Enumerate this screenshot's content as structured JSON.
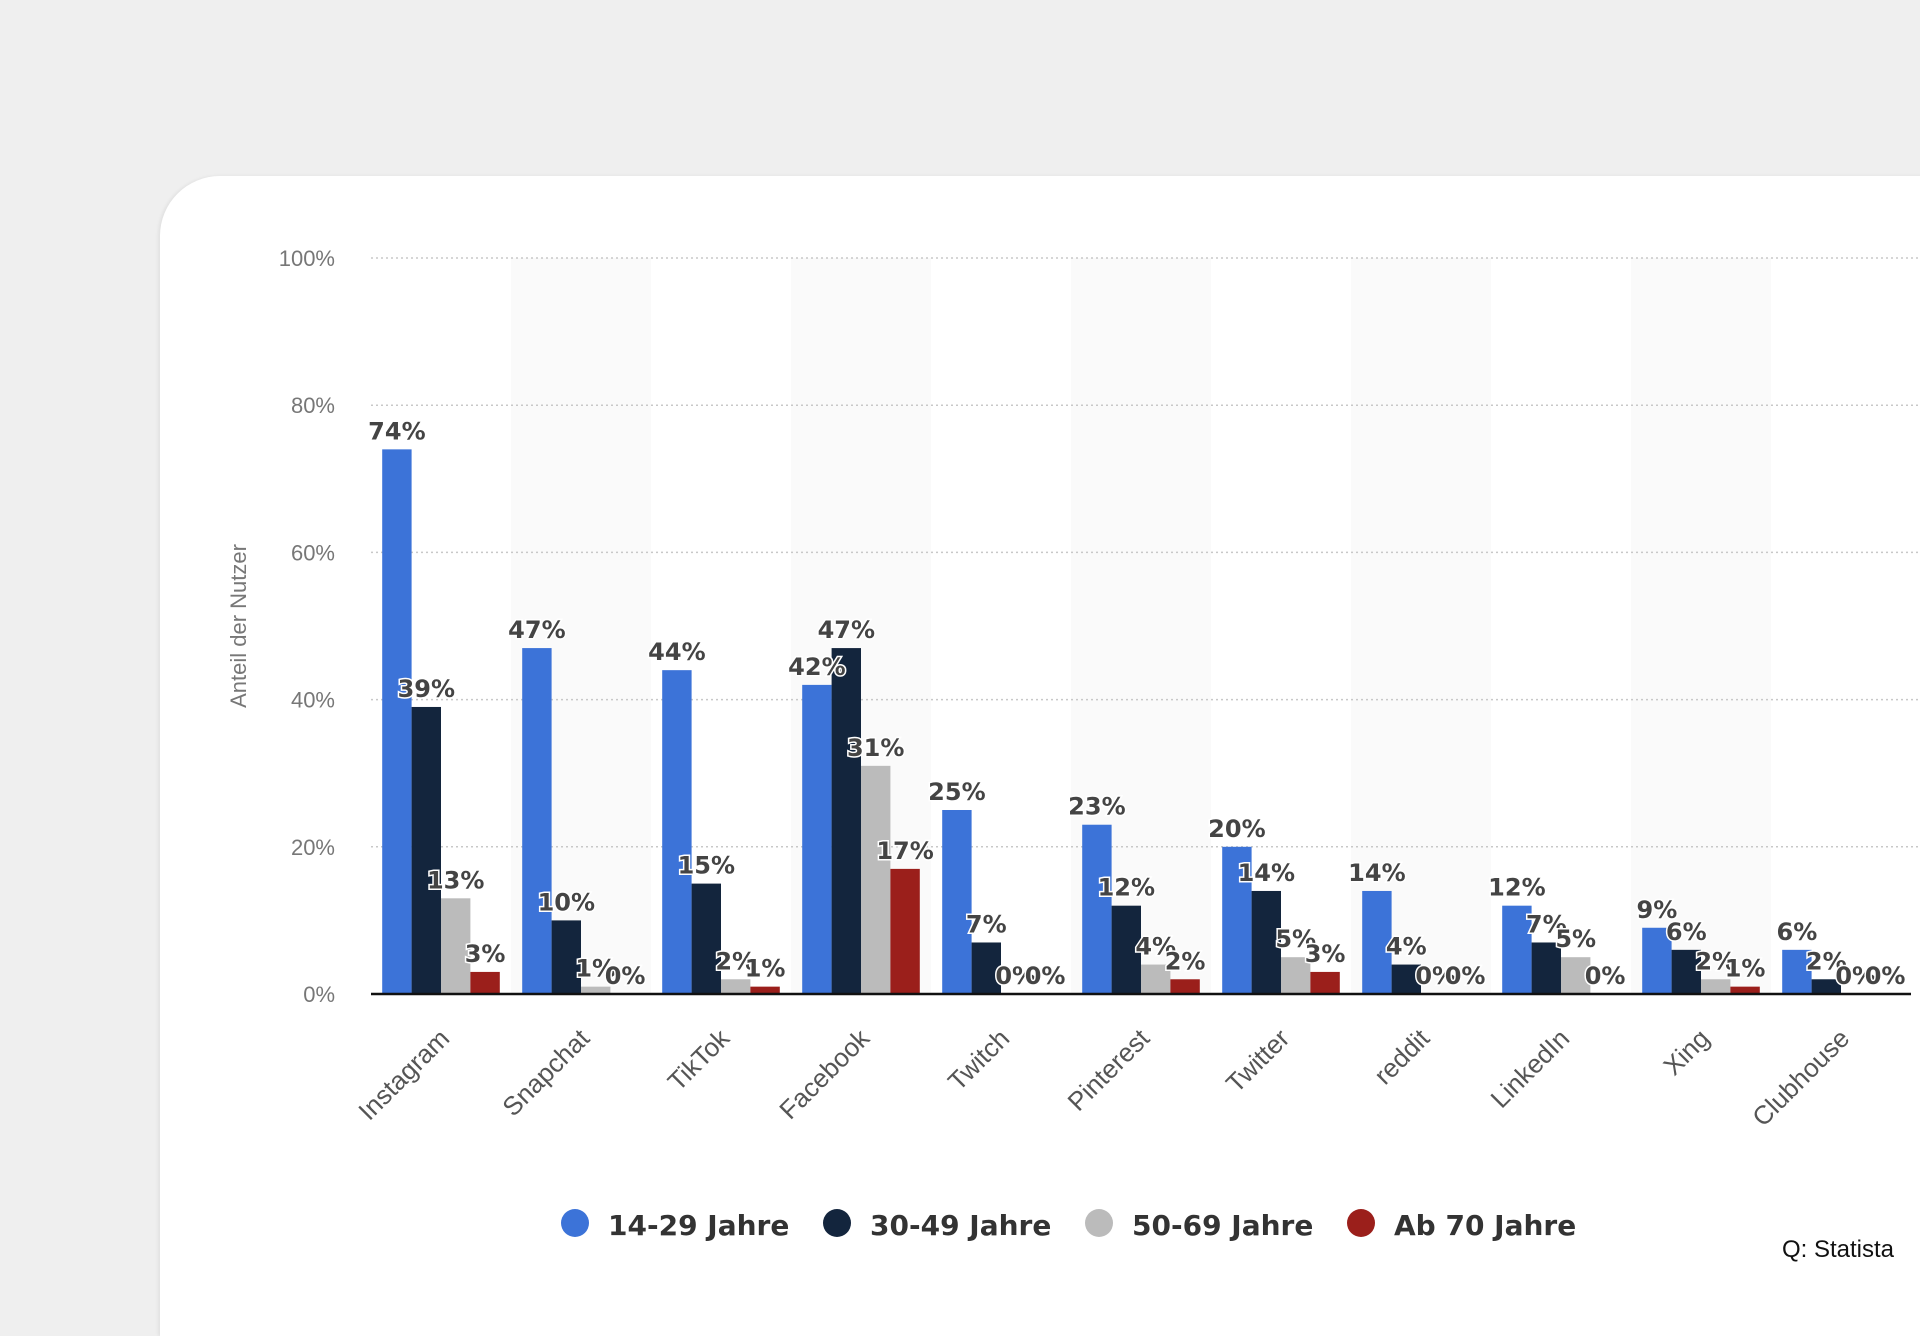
{
  "chart_data": {
    "type": "bar",
    "ylabel": "Anteil der Nutzer",
    "xlabel": "",
    "ylim": [
      0,
      100
    ],
    "yticks": [
      "0%",
      "20%",
      "40%",
      "60%",
      "80%",
      "100%"
    ],
    "grid": true,
    "legend_position": "bottom",
    "categories": [
      "Instagram",
      "Snapchat",
      "TikTok",
      "Facebook",
      "Twitch",
      "Pinterest",
      "Twitter",
      "reddit",
      "LinkedIn",
      "Xing",
      "Clubhouse"
    ],
    "series": [
      {
        "name": "14-29 Jahre",
        "color": "#3c73d8",
        "values": [
          74,
          47,
          44,
          42,
          25,
          23,
          20,
          14,
          12,
          9,
          6
        ]
      },
      {
        "name": "30-49 Jahre",
        "color": "#13253d",
        "values": [
          39,
          10,
          15,
          47,
          7,
          12,
          14,
          4,
          7,
          6,
          2
        ]
      },
      {
        "name": "50-69 Jahre",
        "color": "#bbbbbb",
        "values": [
          13,
          1,
          2,
          31,
          0,
          4,
          5,
          0,
          5,
          2,
          0
        ]
      },
      {
        "name": "Ab 70 Jahre",
        "color": "#9b1f1b",
        "values": [
          3,
          0,
          1,
          17,
          0,
          2,
          3,
          0,
          0,
          1,
          0
        ]
      }
    ],
    "value_suffix": "%"
  },
  "source": "Q: Statista"
}
